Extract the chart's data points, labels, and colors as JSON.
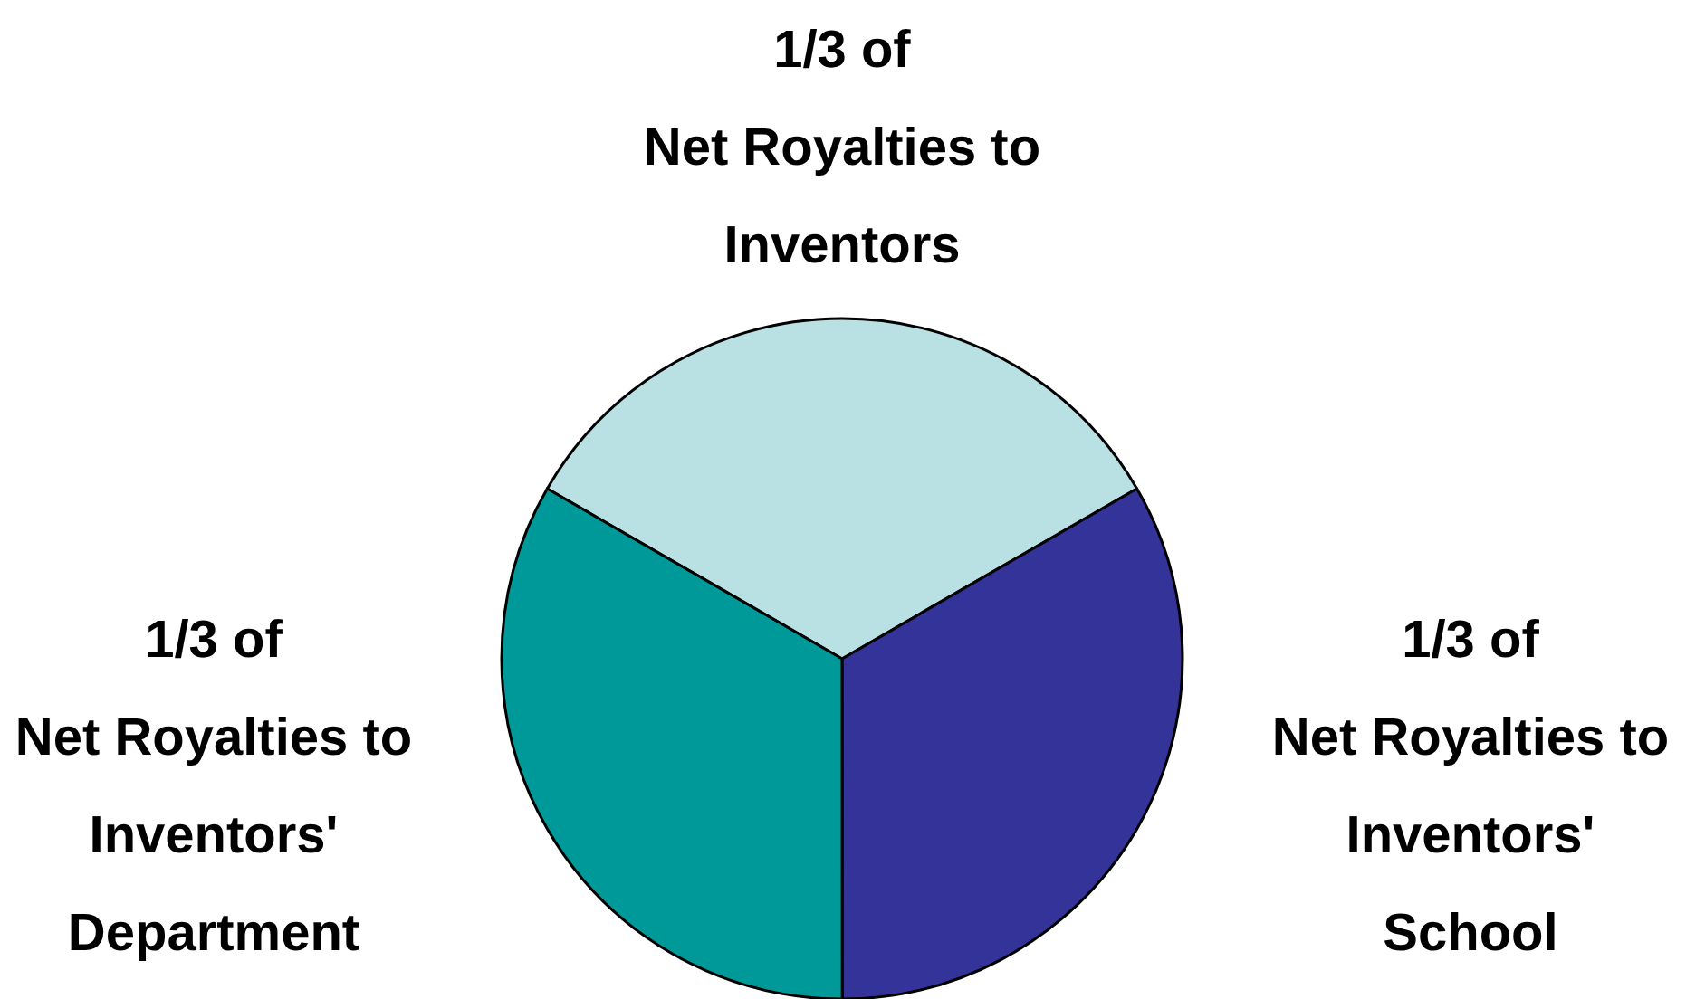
{
  "chart_data": {
    "type": "pie",
    "categories": [
      "1/3 of\nNet Royalties to\nInventors",
      "1/3 of\nNet Royalties to\nInventors' School",
      "1/3 of\nNet Royalties to\nInventors'\nDepartment"
    ],
    "values": [
      33.33,
      33.33,
      33.34
    ],
    "colors": [
      "#b9e0e3",
      "#33339a",
      "#009999"
    ]
  }
}
